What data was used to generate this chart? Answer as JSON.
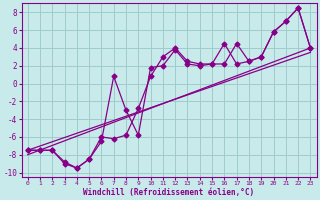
{
  "xlabel": "Windchill (Refroidissement éolien,°C)",
  "xlim": [
    -0.5,
    23.5
  ],
  "ylim": [
    -10.5,
    9.0
  ],
  "yticks": [
    -10,
    -8,
    -6,
    -4,
    -2,
    0,
    2,
    4,
    6,
    8
  ],
  "xticks": [
    0,
    1,
    2,
    3,
    4,
    5,
    6,
    7,
    8,
    9,
    10,
    11,
    12,
    13,
    14,
    15,
    16,
    17,
    18,
    19,
    20,
    21,
    22,
    23
  ],
  "bg_color": "#c8eaea",
  "grid_color": "#a0cccc",
  "line_color": "#880088",
  "line1_x": [
    0,
    1,
    2,
    3,
    4,
    5,
    6,
    7,
    8,
    9,
    10,
    11,
    12,
    13,
    14,
    15,
    16,
    17,
    18,
    19,
    20,
    21,
    22,
    23
  ],
  "line1_y": [
    -7.5,
    -7.5,
    -7.5,
    -9.0,
    -9.5,
    -8.5,
    -6.0,
    -6.2,
    -5.8,
    -2.8,
    0.8,
    3.0,
    4.0,
    2.5,
    2.2,
    2.2,
    2.2,
    4.5,
    2.5,
    3.0,
    5.8,
    7.0,
    8.5,
    4.0
  ],
  "line2_x": [
    0,
    1,
    2,
    3,
    4,
    5,
    6,
    7,
    8,
    9,
    10,
    11,
    12,
    13,
    14,
    15,
    16,
    17,
    18,
    19,
    20,
    21,
    22,
    23
  ],
  "line2_y": [
    -7.5,
    -7.5,
    -7.5,
    -8.8,
    -9.5,
    -8.5,
    -6.5,
    0.8,
    -3.0,
    -5.8,
    1.8,
    2.0,
    3.8,
    2.2,
    2.0,
    2.2,
    4.5,
    2.2,
    2.5,
    3.0,
    5.8,
    7.0,
    8.5,
    4.0
  ],
  "line3_x": [
    0,
    23
  ],
  "line3_y": [
    -8.0,
    4.0
  ],
  "line4_x": [
    0,
    23
  ],
  "line4_y": [
    -7.5,
    3.5
  ]
}
